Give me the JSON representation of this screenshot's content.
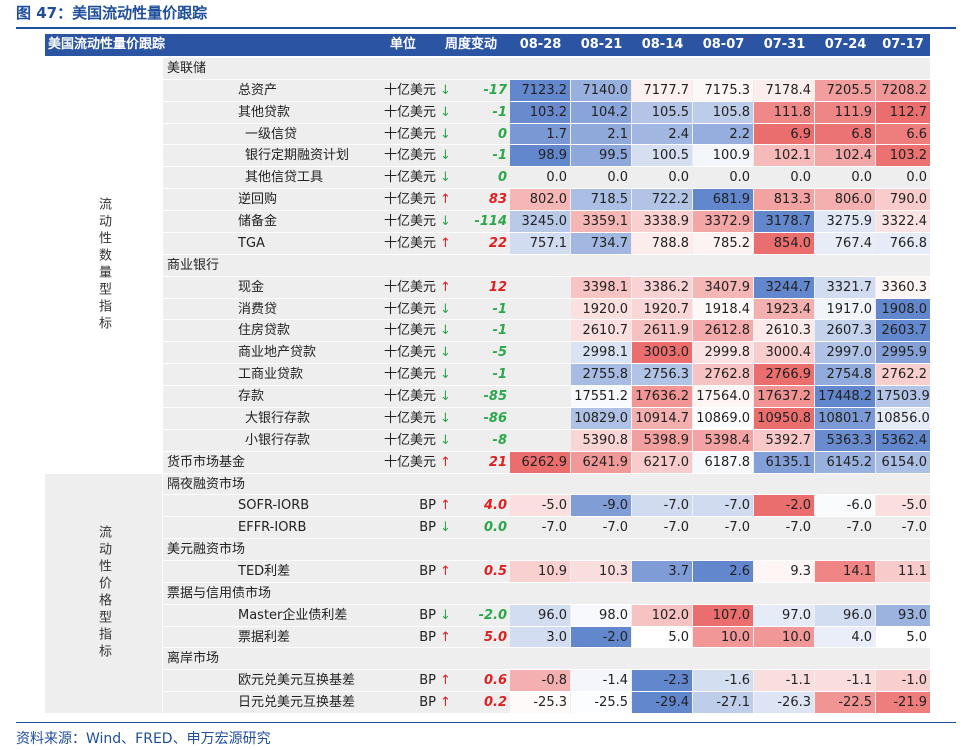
{
  "title": "图 47：美国流动性量价跟踪",
  "header": {
    "label": "美国流动性量价跟踪",
    "unit": "单位",
    "change": "周度变动",
    "dates": [
      "08-28",
      "08-21",
      "08-14",
      "08-07",
      "07-31",
      "07-24",
      "07-17"
    ]
  },
  "sections": [
    {
      "label": "流动性数量型指标",
      "groups": [
        {
          "name": "美联储",
          "items": [
            {
              "name": "总资产",
              "unit": "十亿美元",
              "arrow": "↓",
              "change": "-17",
              "values": [
                "7123.2",
                "7140.0",
                "7177.7",
                "7175.3",
                "7178.4",
                "7205.5",
                "7208.2"
              ]
            },
            {
              "name": "其他贷款",
              "unit": "十亿美元",
              "arrow": "↓",
              "change": "-1",
              "values": [
                "103.2",
                "104.2",
                "105.5",
                "105.8",
                "111.8",
                "111.9",
                "112.7"
              ],
              "items": [
                {
                  "name": "一级信贷",
                  "unit": "十亿美元",
                  "arrow": "↓",
                  "change": "0",
                  "values": [
                    "1.7",
                    "2.1",
                    "2.4",
                    "2.2",
                    "6.9",
                    "6.8",
                    "6.6"
                  ]
                },
                {
                  "name": "银行定期融资计划",
                  "unit": "十亿美元",
                  "arrow": "↓",
                  "change": "-1",
                  "values": [
                    "98.9",
                    "99.5",
                    "100.5",
                    "100.9",
                    "102.1",
                    "102.4",
                    "103.2"
                  ]
                },
                {
                  "name": "其他信贷工具",
                  "unit": "十亿美元",
                  "arrow": "↓",
                  "change": "0",
                  "values": [
                    "0.0",
                    "0.0",
                    "0.0",
                    "0.0",
                    "0.0",
                    "0.0",
                    "0.0"
                  ]
                }
              ]
            },
            {
              "name": "逆回购",
              "unit": "十亿美元",
              "arrow": "↑",
              "change": "83",
              "values": [
                "802.0",
                "718.5",
                "722.2",
                "681.9",
                "813.3",
                "806.0",
                "790.0"
              ]
            },
            {
              "name": "储备金",
              "unit": "十亿美元",
              "arrow": "↓",
              "change": "-114",
              "values": [
                "3245.0",
                "3359.1",
                "3338.9",
                "3372.9",
                "3178.7",
                "3275.9",
                "3322.4"
              ]
            },
            {
              "name": "TGA",
              "unit": "十亿美元",
              "arrow": "↑",
              "change": "22",
              "values": [
                "757.1",
                "734.7",
                "788.8",
                "785.2",
                "854.0",
                "767.4",
                "766.8"
              ]
            }
          ]
        },
        {
          "name": "商业银行",
          "items": [
            {
              "name": "现金",
              "unit": "十亿美元",
              "arrow": "↑",
              "change": "12",
              "values": [
                null,
                "3398.1",
                "3386.2",
                "3407.9",
                "3244.7",
                "3321.7",
                "3360.3"
              ]
            },
            {
              "name": "消费贷",
              "unit": "十亿美元",
              "arrow": "↓",
              "change": "-1",
              "values": [
                null,
                "1920.0",
                "1920.7",
                "1918.4",
                "1923.4",
                "1917.0",
                "1908.0"
              ]
            },
            {
              "name": "住房贷款",
              "unit": "十亿美元",
              "arrow": "↓",
              "change": "-1",
              "values": [
                null,
                "2610.7",
                "2611.9",
                "2612.8",
                "2610.3",
                "2607.3",
                "2603.7"
              ]
            },
            {
              "name": "商业地产贷款",
              "unit": "十亿美元",
              "arrow": "↓",
              "change": "-5",
              "values": [
                null,
                "2998.1",
                "3003.0",
                "2999.8",
                "3000.4",
                "2997.0",
                "2995.9"
              ]
            },
            {
              "name": "工商业贷款",
              "unit": "十亿美元",
              "arrow": "↓",
              "change": "-1",
              "values": [
                null,
                "2755.8",
                "2756.3",
                "2762.8",
                "2766.9",
                "2754.8",
                "2762.2"
              ]
            },
            {
              "name": "存款",
              "unit": "十亿美元",
              "arrow": "↓",
              "change": "-85",
              "values": [
                null,
                "17551.2",
                "17636.2",
                "17564.0",
                "17637.2",
                "17448.2",
                "17503.9"
              ],
              "items": [
                {
                  "name": "大银行存款",
                  "unit": "十亿美元",
                  "arrow": "↓",
                  "change": "-86",
                  "values": [
                    null,
                    "10829.0",
                    "10914.7",
                    "10869.0",
                    "10950.8",
                    "10801.7",
                    "10856.0"
                  ]
                },
                {
                  "name": "小银行存款",
                  "unit": "十亿美元",
                  "arrow": "↓",
                  "change": "-8",
                  "values": [
                    null,
                    "5390.8",
                    "5398.9",
                    "5398.4",
                    "5392.7",
                    "5363.3",
                    "5362.4"
                  ]
                }
              ]
            }
          ]
        },
        {
          "name": "货币市场基金",
          "unit": "十亿美元",
          "arrow": "↑",
          "change": "21",
          "values": [
            "6262.9",
            "6241.9",
            "6217.0",
            "6187.8",
            "6135.1",
            "6145.2",
            "6154.0"
          ]
        }
      ]
    },
    {
      "label": "流动性价格型指标",
      "groups": [
        {
          "name": "隔夜融资市场",
          "items": [
            {
              "name": "SOFR-IORB",
              "unit": "BP",
              "arrow": "↑",
              "change": "4.0",
              "values": [
                "-5.0",
                "-9.0",
                "-7.0",
                "-7.0",
                "-2.0",
                "-6.0",
                "-5.0"
              ]
            },
            {
              "name": "EFFR-IORB",
              "unit": "BP",
              "arrow": "↓",
              "change": "0.0",
              "values": [
                "-7.0",
                "-7.0",
                "-7.0",
                "-7.0",
                "-7.0",
                "-7.0",
                "-7.0"
              ]
            }
          ]
        },
        {
          "name": "美元融资市场",
          "items": [
            {
              "name": "TED利差",
              "unit": "BP",
              "arrow": "↑",
              "change": "0.5",
              "values": [
                "10.9",
                "10.3",
                "3.7",
                "2.6",
                "9.3",
                "14.1",
                "11.1"
              ]
            }
          ]
        },
        {
          "name": "票据与信用债市场",
          "items": [
            {
              "name": "Master企业债利差",
              "unit": "BP",
              "arrow": "↓",
              "change": "-2.0",
              "values": [
                "96.0",
                "98.0",
                "102.0",
                "107.0",
                "97.0",
                "96.0",
                "93.0"
              ]
            },
            {
              "name": "票据利差",
              "unit": "BP",
              "arrow": "↑",
              "change": "5.0",
              "values": [
                "3.0",
                "-2.0",
                "5.0",
                "10.0",
                "10.0",
                "4.0",
                "5.0"
              ]
            }
          ]
        },
        {
          "name": "离岸市场",
          "items": [
            {
              "name": "欧元兑美元互换基差",
              "unit": "BP",
              "arrow": "↑",
              "change": "0.6",
              "values": [
                "-0.8",
                "-1.4",
                "-2.3",
                "-1.6",
                "-1.1",
                "-1.1",
                "-1.0"
              ]
            },
            {
              "name": "日元兑美元互换基差",
              "unit": "BP",
              "arrow": "↑",
              "change": "0.2",
              "values": [
                "-25.3",
                "-25.5",
                "-29.4",
                "-27.1",
                "-26.3",
                "-22.5",
                "-21.9"
              ]
            }
          ]
        }
      ]
    }
  ],
  "source": "资料来源：Wind、FRED、申万宏源研究"
}
